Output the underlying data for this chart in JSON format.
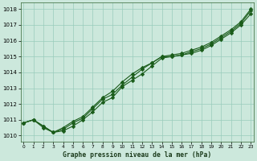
{
  "background_color": "#cce8dc",
  "grid_color": "#99ccbb",
  "line_color": "#1a5c1a",
  "marker": "D",
  "title": "Graphe pression niveau de la mer (hPa)",
  "xlabel_hours": [
    0,
    1,
    2,
    3,
    4,
    5,
    6,
    7,
    8,
    9,
    10,
    11,
    12,
    13,
    14,
    15,
    16,
    17,
    18,
    19,
    20,
    21,
    22,
    23
  ],
  "ylim": [
    1009.6,
    1018.4
  ],
  "yticks": [
    1010,
    1011,
    1012,
    1013,
    1014,
    1015,
    1016,
    1017,
    1018
  ],
  "line1": [
    1010.8,
    1011.0,
    1010.6,
    1010.2,
    1010.5,
    1010.9,
    1011.2,
    1011.8,
    1012.4,
    1012.8,
    1013.4,
    1013.9,
    1014.3,
    1014.6,
    1015.0,
    1015.1,
    1015.2,
    1015.4,
    1015.6,
    1015.9,
    1016.3,
    1016.7,
    1017.2,
    1018.0
  ],
  "line2": [
    1010.8,
    1011.0,
    1010.6,
    1010.2,
    1010.4,
    1010.8,
    1011.1,
    1011.7,
    1012.3,
    1012.6,
    1013.2,
    1013.7,
    1014.2,
    1014.6,
    1015.0,
    1015.0,
    1015.1,
    1015.3,
    1015.5,
    1015.8,
    1016.2,
    1016.6,
    1017.1,
    1017.9
  ],
  "line3": [
    1010.8,
    1011.0,
    1010.5,
    1010.2,
    1010.3,
    1010.6,
    1011.0,
    1011.5,
    1012.1,
    1012.4,
    1013.1,
    1013.5,
    1013.9,
    1014.4,
    1014.9,
    1015.0,
    1015.1,
    1015.2,
    1015.4,
    1015.7,
    1016.1,
    1016.5,
    1017.0,
    1017.7
  ]
}
